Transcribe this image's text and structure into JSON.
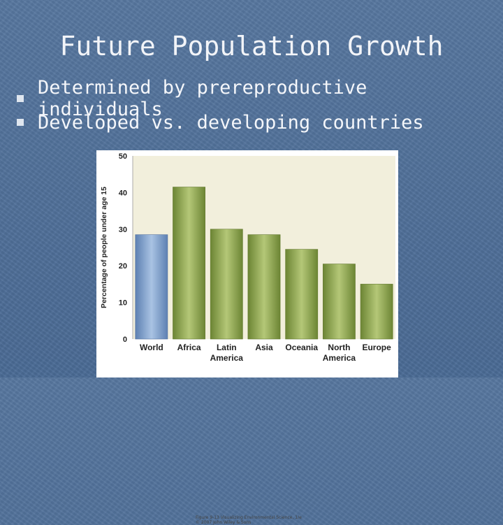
{
  "slide": {
    "title": "Future Population Growth",
    "bullets": [
      "Determined by prereproductive individuals",
      "Developed vs. developing countries"
    ]
  },
  "figure": {
    "credit_line1": "Figure 9-13 Visualizing Environmental Science, 1/e",
    "credit_line2": "© 2007 John Wiley & Sons"
  },
  "chart_data": {
    "type": "bar",
    "categories": [
      "World",
      "Africa",
      "Latin America",
      "Asia",
      "Oceania",
      "North America",
      "Europe"
    ],
    "category_lines": [
      [
        "World"
      ],
      [
        "Africa"
      ],
      [
        "Latin",
        "America"
      ],
      [
        "Asia"
      ],
      [
        "Oceania"
      ],
      [
        "North",
        "America"
      ],
      [
        "Europe"
      ]
    ],
    "values": [
      28.5,
      41.5,
      30,
      28.5,
      24.5,
      20.5,
      15
    ],
    "ylabel": "Percentage of people under age 15",
    "xlabel": "",
    "ylim": [
      0,
      50
    ],
    "yticks": [
      0,
      10,
      20,
      30,
      40,
      50
    ],
    "grid": false,
    "colors": {
      "world": "#7e9fc9",
      "regions": "#8ea44f",
      "plot_bg": "#f2efdc"
    }
  }
}
